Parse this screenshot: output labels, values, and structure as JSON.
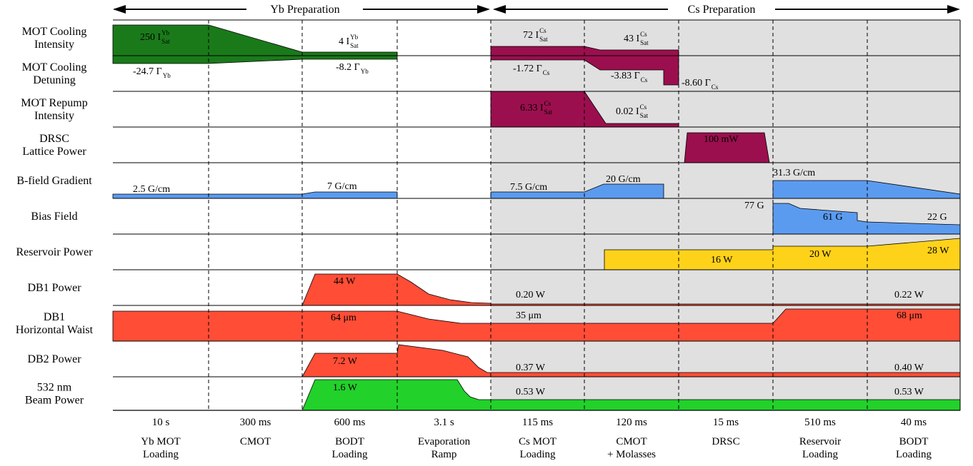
{
  "header": {
    "yb_preparation": "Yb Preparation",
    "cs_preparation": "Cs Preparation"
  },
  "rows": [
    {
      "id": "mot-cooling-intensity",
      "label": [
        "MOT Cooling",
        "Intensity"
      ]
    },
    {
      "id": "mot-cooling-detuning",
      "label": [
        "MOT Cooling",
        "Detuning"
      ]
    },
    {
      "id": "mot-repump-intensity",
      "label": [
        "MOT Repump",
        "Intensity"
      ]
    },
    {
      "id": "drsc-lattice-power",
      "label": [
        "DRSC",
        "Lattice Power"
      ]
    },
    {
      "id": "b-field-gradient",
      "label": [
        "B-field Gradient"
      ]
    },
    {
      "id": "bias-field",
      "label": [
        "Bias Field"
      ]
    },
    {
      "id": "reservoir-power",
      "label": [
        "Reservoir Power"
      ]
    },
    {
      "id": "db1-power",
      "label": [
        "DB1 Power"
      ]
    },
    {
      "id": "db1-horizontal-waist",
      "label": [
        "DB1",
        "Horizontal Waist"
      ]
    },
    {
      "id": "db2-power",
      "label": [
        "DB2 Power"
      ]
    },
    {
      "id": "beam-532-power",
      "label": [
        "532 nm",
        "Beam Power"
      ]
    }
  ],
  "phases": [
    {
      "duration": "10 s",
      "name": [
        "Yb MOT",
        "Loading"
      ]
    },
    {
      "duration": "300 ms",
      "name": [
        "CMOT"
      ]
    },
    {
      "duration": "600 ms",
      "name": [
        "BODT",
        "Loading"
      ]
    },
    {
      "duration": "3.1 s",
      "name": [
        "Evaporation",
        "Ramp"
      ]
    },
    {
      "duration": "115 ms",
      "name": [
        "Cs MOT",
        "Loading"
      ]
    },
    {
      "duration": "120 ms",
      "name": [
        "CMOT",
        "+ Molasses"
      ]
    },
    {
      "duration": "15 ms",
      "name": [
        "DRSC"
      ]
    },
    {
      "duration": "510 ms",
      "name": [
        "Reservoir",
        "Loading"
      ]
    },
    {
      "duration": "40 ms",
      "name": [
        "BODT",
        "Loading"
      ]
    }
  ],
  "values": [
    {
      "id": "yb-cool-int-250",
      "text": "250 I",
      "sup": "Yb",
      "sub": "Sat"
    },
    {
      "id": "yb-cool-int-4",
      "text": "4 I",
      "sup": "Yb",
      "sub": "Sat"
    },
    {
      "id": "cs-cool-int-72",
      "text": "72 I",
      "sup": "Cs",
      "sub": "Sat"
    },
    {
      "id": "cs-cool-int-43",
      "text": "43 I",
      "sup": "Cs",
      "sub": "Sat"
    },
    {
      "id": "yb-det-24-7",
      "text": "-24.7 Γ",
      "sub": "Yb"
    },
    {
      "id": "yb-det-8-2",
      "text": "-8.2 Γ",
      "sub": "Yb"
    },
    {
      "id": "cs-det-1-72",
      "text": "-1.72 Γ",
      "sub": "Cs"
    },
    {
      "id": "cs-det-3-83",
      "text": "-3.83 Γ",
      "sub": "Cs"
    },
    {
      "id": "cs-det-8-60",
      "text": "-8.60 Γ",
      "sub": "Cs"
    },
    {
      "id": "repump-6-33",
      "text": "6.33 I",
      "sup": "Cs",
      "sub": "Sat"
    },
    {
      "id": "repump-0-02",
      "text": "0.02 I",
      "sup": "Cs",
      "sub": "Sat"
    },
    {
      "id": "drsc-100mw",
      "text": "100 mW"
    },
    {
      "id": "grad-2-5",
      "text": "2.5 G/cm"
    },
    {
      "id": "grad-7",
      "text": "7 G/cm"
    },
    {
      "id": "grad-7-5",
      "text": "7.5 G/cm"
    },
    {
      "id": "grad-20",
      "text": "20 G/cm"
    },
    {
      "id": "grad-31-3",
      "text": "31.3 G/cm"
    },
    {
      "id": "bias-77",
      "text": "77 G"
    },
    {
      "id": "bias-61",
      "text": "61 G"
    },
    {
      "id": "bias-22",
      "text": "22 G"
    },
    {
      "id": "res-16",
      "text": "16 W"
    },
    {
      "id": "res-20",
      "text": "20 W"
    },
    {
      "id": "res-28",
      "text": "28 W"
    },
    {
      "id": "db1-44",
      "text": "44 W"
    },
    {
      "id": "db1-0-20",
      "text": "0.20 W"
    },
    {
      "id": "db1-0-22",
      "text": "0.22 W"
    },
    {
      "id": "waist-64",
      "text": "64 μm"
    },
    {
      "id": "waist-35",
      "text": "35 μm"
    },
    {
      "id": "waist-68",
      "text": "68 μm"
    },
    {
      "id": "db2-7-2",
      "text": "7.2 W"
    },
    {
      "id": "db2-0-37",
      "text": "0.37 W"
    },
    {
      "id": "db2-0-40",
      "text": "0.40 W"
    },
    {
      "id": "g532-1-6",
      "text": "1.6 W"
    },
    {
      "id": "g532-0-53a",
      "text": "0.53 W"
    },
    {
      "id": "g532-0-53b",
      "text": "0.53 W"
    }
  ],
  "colors": {
    "yb_green": "#1a7a1a",
    "cs_maroon": "#9b0f4e",
    "gradient_blue": "#5b9bef",
    "reservoir_yellow": "#ffd21a",
    "dipole_red": "#ff4d36",
    "beam_green": "#22d12a",
    "cs_background": "#e0e0e0"
  }
}
